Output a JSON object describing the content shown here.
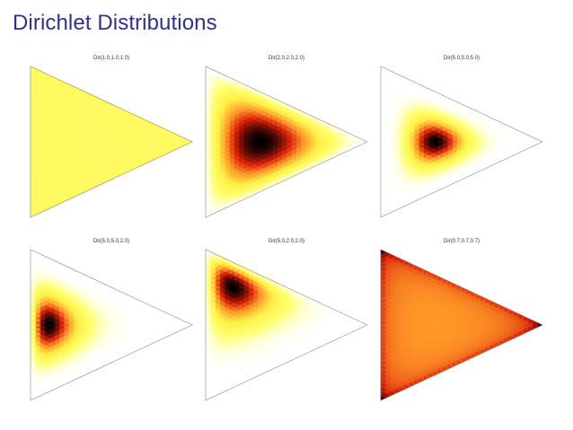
{
  "title": "Dirichlet Distributions",
  "colors": {
    "title": "#2e3192",
    "heat_low": "#ffffff",
    "heat_mid1": "#ffff66",
    "heat_mid2": "#ff9a2a",
    "heat_mid3": "#d81a0a",
    "heat_high": "#000000",
    "outline": "#888888"
  },
  "panels": [
    {
      "label": "Dir(1.0,1.0,1.0)",
      "alpha": [
        1.0,
        1.0,
        1.0
      ],
      "colormap": "hot"
    },
    {
      "label": "Dir(2.0,2.0,2.0)",
      "alpha": [
        2.0,
        2.0,
        2.0
      ],
      "colormap": "hot"
    },
    {
      "label": "Dir(5.0,5.0,5.0)",
      "alpha": [
        5.0,
        5.0,
        5.0
      ],
      "colormap": "hot"
    },
    {
      "label": "Dir(5.0,5.0,2.0)",
      "alpha": [
        5.0,
        5.0,
        2.0
      ],
      "colormap": "hot"
    },
    {
      "label": "Dir(5.0,2.0,2.0)",
      "alpha": [
        5.0,
        2.0,
        2.0
      ],
      "colormap": "hot"
    },
    {
      "label": "Dir(0.7,0.7,0.7)",
      "alpha": [
        0.7,
        0.7,
        0.7
      ],
      "colormap": "hot"
    }
  ]
}
